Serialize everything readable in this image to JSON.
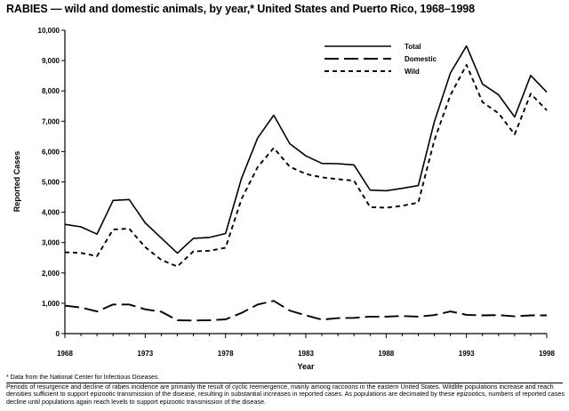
{
  "header": {
    "title": "RABIES — wild and domestic animals, by year,* United States and Puerto Rico, 1968–1998"
  },
  "notes": {
    "footnote": "* Data from the National Center for Infectious Diseases.",
    "caption": "Periods of resurgence and decline of rabies incidence are primarily the result of cyclic reemergence, mainly among raccoons in the eastern United States. Wildlife populations increase and reach densities sufficient to support epizootic transmission of the disease, resulting in substantial increases in reported cases. As populations are decimated by these epizootics, numbers of reported cases decline until populations again reach levels to support epizootic transmission of the disease."
  },
  "chart_data": {
    "type": "line",
    "title": "RABIES — wild and domestic animals, by year,* United States and Puerto Rico, 1968–1998",
    "xlabel": "Year",
    "ylabel": "Reported Cases",
    "xlim": [
      1968,
      1998
    ],
    "ylim": [
      0,
      10000
    ],
    "x_ticks": [
      1968,
      1973,
      1978,
      1983,
      1988,
      1993,
      1998
    ],
    "x_tick_labels": [
      "1968",
      "1973",
      "1978",
      "1983",
      "1988",
      "1993",
      "1998"
    ],
    "y_ticks": [
      0,
      1000,
      2000,
      3000,
      4000,
      5000,
      6000,
      7000,
      8000,
      9000,
      10000
    ],
    "y_tick_labels": [
      "0",
      "1,000",
      "2,000",
      "3,000",
      "4,000",
      "5,000",
      "6,000",
      "7,000",
      "8,000",
      "9,000",
      "10,000"
    ],
    "grid": false,
    "legend_position": "top-right",
    "x": [
      1968,
      1969,
      1970,
      1971,
      1972,
      1973,
      1974,
      1975,
      1976,
      1977,
      1978,
      1979,
      1980,
      1981,
      1982,
      1983,
      1984,
      1985,
      1986,
      1987,
      1988,
      1989,
      1990,
      1991,
      1992,
      1993,
      1994,
      1995,
      1996,
      1997,
      1998
    ],
    "series": [
      {
        "name": "Total",
        "style": "solid",
        "values": [
          3600,
          3520,
          3280,
          4390,
          4420,
          3650,
          3150,
          2650,
          3140,
          3170,
          3300,
          5120,
          6450,
          7200,
          6260,
          5860,
          5610,
          5600,
          5560,
          4730,
          4710,
          4790,
          4880,
          6980,
          8590,
          9480,
          8230,
          7870,
          7140,
          8510,
          7960
        ]
      },
      {
        "name": "Domestic",
        "style": "long-dash",
        "values": [
          920,
          860,
          730,
          960,
          960,
          800,
          720,
          440,
          430,
          440,
          470,
          680,
          960,
          1080,
          760,
          600,
          460,
          510,
          520,
          560,
          560,
          580,
          560,
          610,
          730,
          620,
          600,
          610,
          570,
          600,
          600
        ]
      },
      {
        "name": "Wild",
        "style": "short-dash",
        "values": [
          2680,
          2660,
          2550,
          3430,
          3460,
          2850,
          2430,
          2210,
          2710,
          2730,
          2830,
          4440,
          5490,
          6120,
          5500,
          5260,
          5150,
          5090,
          5040,
          4170,
          4150,
          4210,
          4320,
          6370,
          7860,
          8860,
          7630,
          7260,
          6570,
          7910,
          7360
        ]
      }
    ],
    "colors": {
      "line": "#000000",
      "axis": "#000000"
    }
  }
}
